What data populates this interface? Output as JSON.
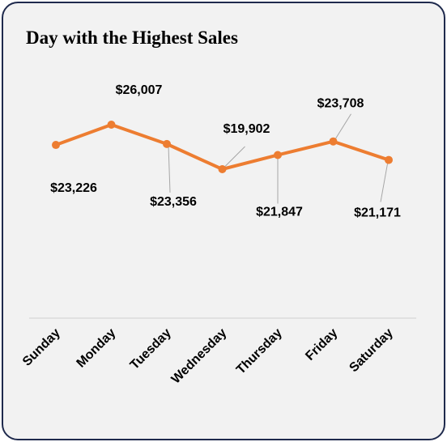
{
  "chart_data": {
    "type": "line",
    "title": "Day with the Highest Sales",
    "xlabel": "",
    "ylabel": "",
    "categories": [
      "Sunday",
      "Monday",
      "Tuesday",
      "Wednesday",
      "Thursday",
      "Friday",
      "Saturday"
    ],
    "series": [
      {
        "values": [
          23226,
          26007,
          23356,
          19902,
          21847,
          23708,
          21171
        ],
        "data_labels": [
          "$23,226",
          "$26,007",
          "$23,356",
          "$19,902",
          "$21,847",
          "$23,708",
          "$21,171"
        ]
      }
    ],
    "line_color": "#ed7d31",
    "grid": false,
    "legend": "none"
  }
}
